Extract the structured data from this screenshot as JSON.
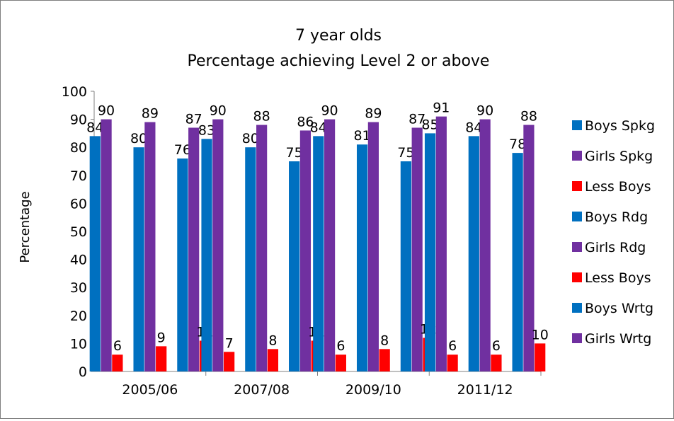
{
  "chart_data": {
    "type": "bar",
    "title": "7 year olds",
    "subtitle": "Percentage achieving Level 2 or above",
    "xlabel": "",
    "ylabel": "Percentage",
    "ylim": [
      0,
      100
    ],
    "yticks": [
      "0",
      "10",
      "20",
      "30",
      "40",
      "50",
      "60",
      "70",
      "80",
      "90",
      "100"
    ],
    "grid": false,
    "legend_position": "right",
    "categories": [
      "2005/06",
      "2007/08",
      "2009/10",
      "2011/12"
    ],
    "series": [
      {
        "name": "Boys Spkg",
        "color": "#0070c0",
        "values": [
          84,
          83,
          84,
          85
        ]
      },
      {
        "name": "Girls Spkg",
        "color": "#7030a0",
        "values": [
          90,
          90,
          90,
          91
        ]
      },
      {
        "name": "Less Boys",
        "color": "#ff0000",
        "values": [
          6,
          7,
          6,
          6
        ]
      },
      {
        "name": "Boys Rdg",
        "color": "#0070c0",
        "values": [
          80,
          80,
          81,
          84
        ]
      },
      {
        "name": "Girls Rdg",
        "color": "#7030a0",
        "values": [
          89,
          88,
          89,
          90
        ]
      },
      {
        "name": "Less Boys",
        "color": "#ff0000",
        "values": [
          9,
          8,
          8,
          6
        ]
      },
      {
        "name": "Boys Wrtg",
        "color": "#0070c0",
        "values": [
          76,
          75,
          75,
          78
        ]
      },
      {
        "name": "Girls Wrtg",
        "color": "#7030a0",
        "values": [
          87,
          86,
          87,
          88
        ]
      },
      {
        "name": "",
        "color": "#ff0000",
        "values": [
          11,
          11,
          12,
          10
        ]
      }
    ]
  }
}
